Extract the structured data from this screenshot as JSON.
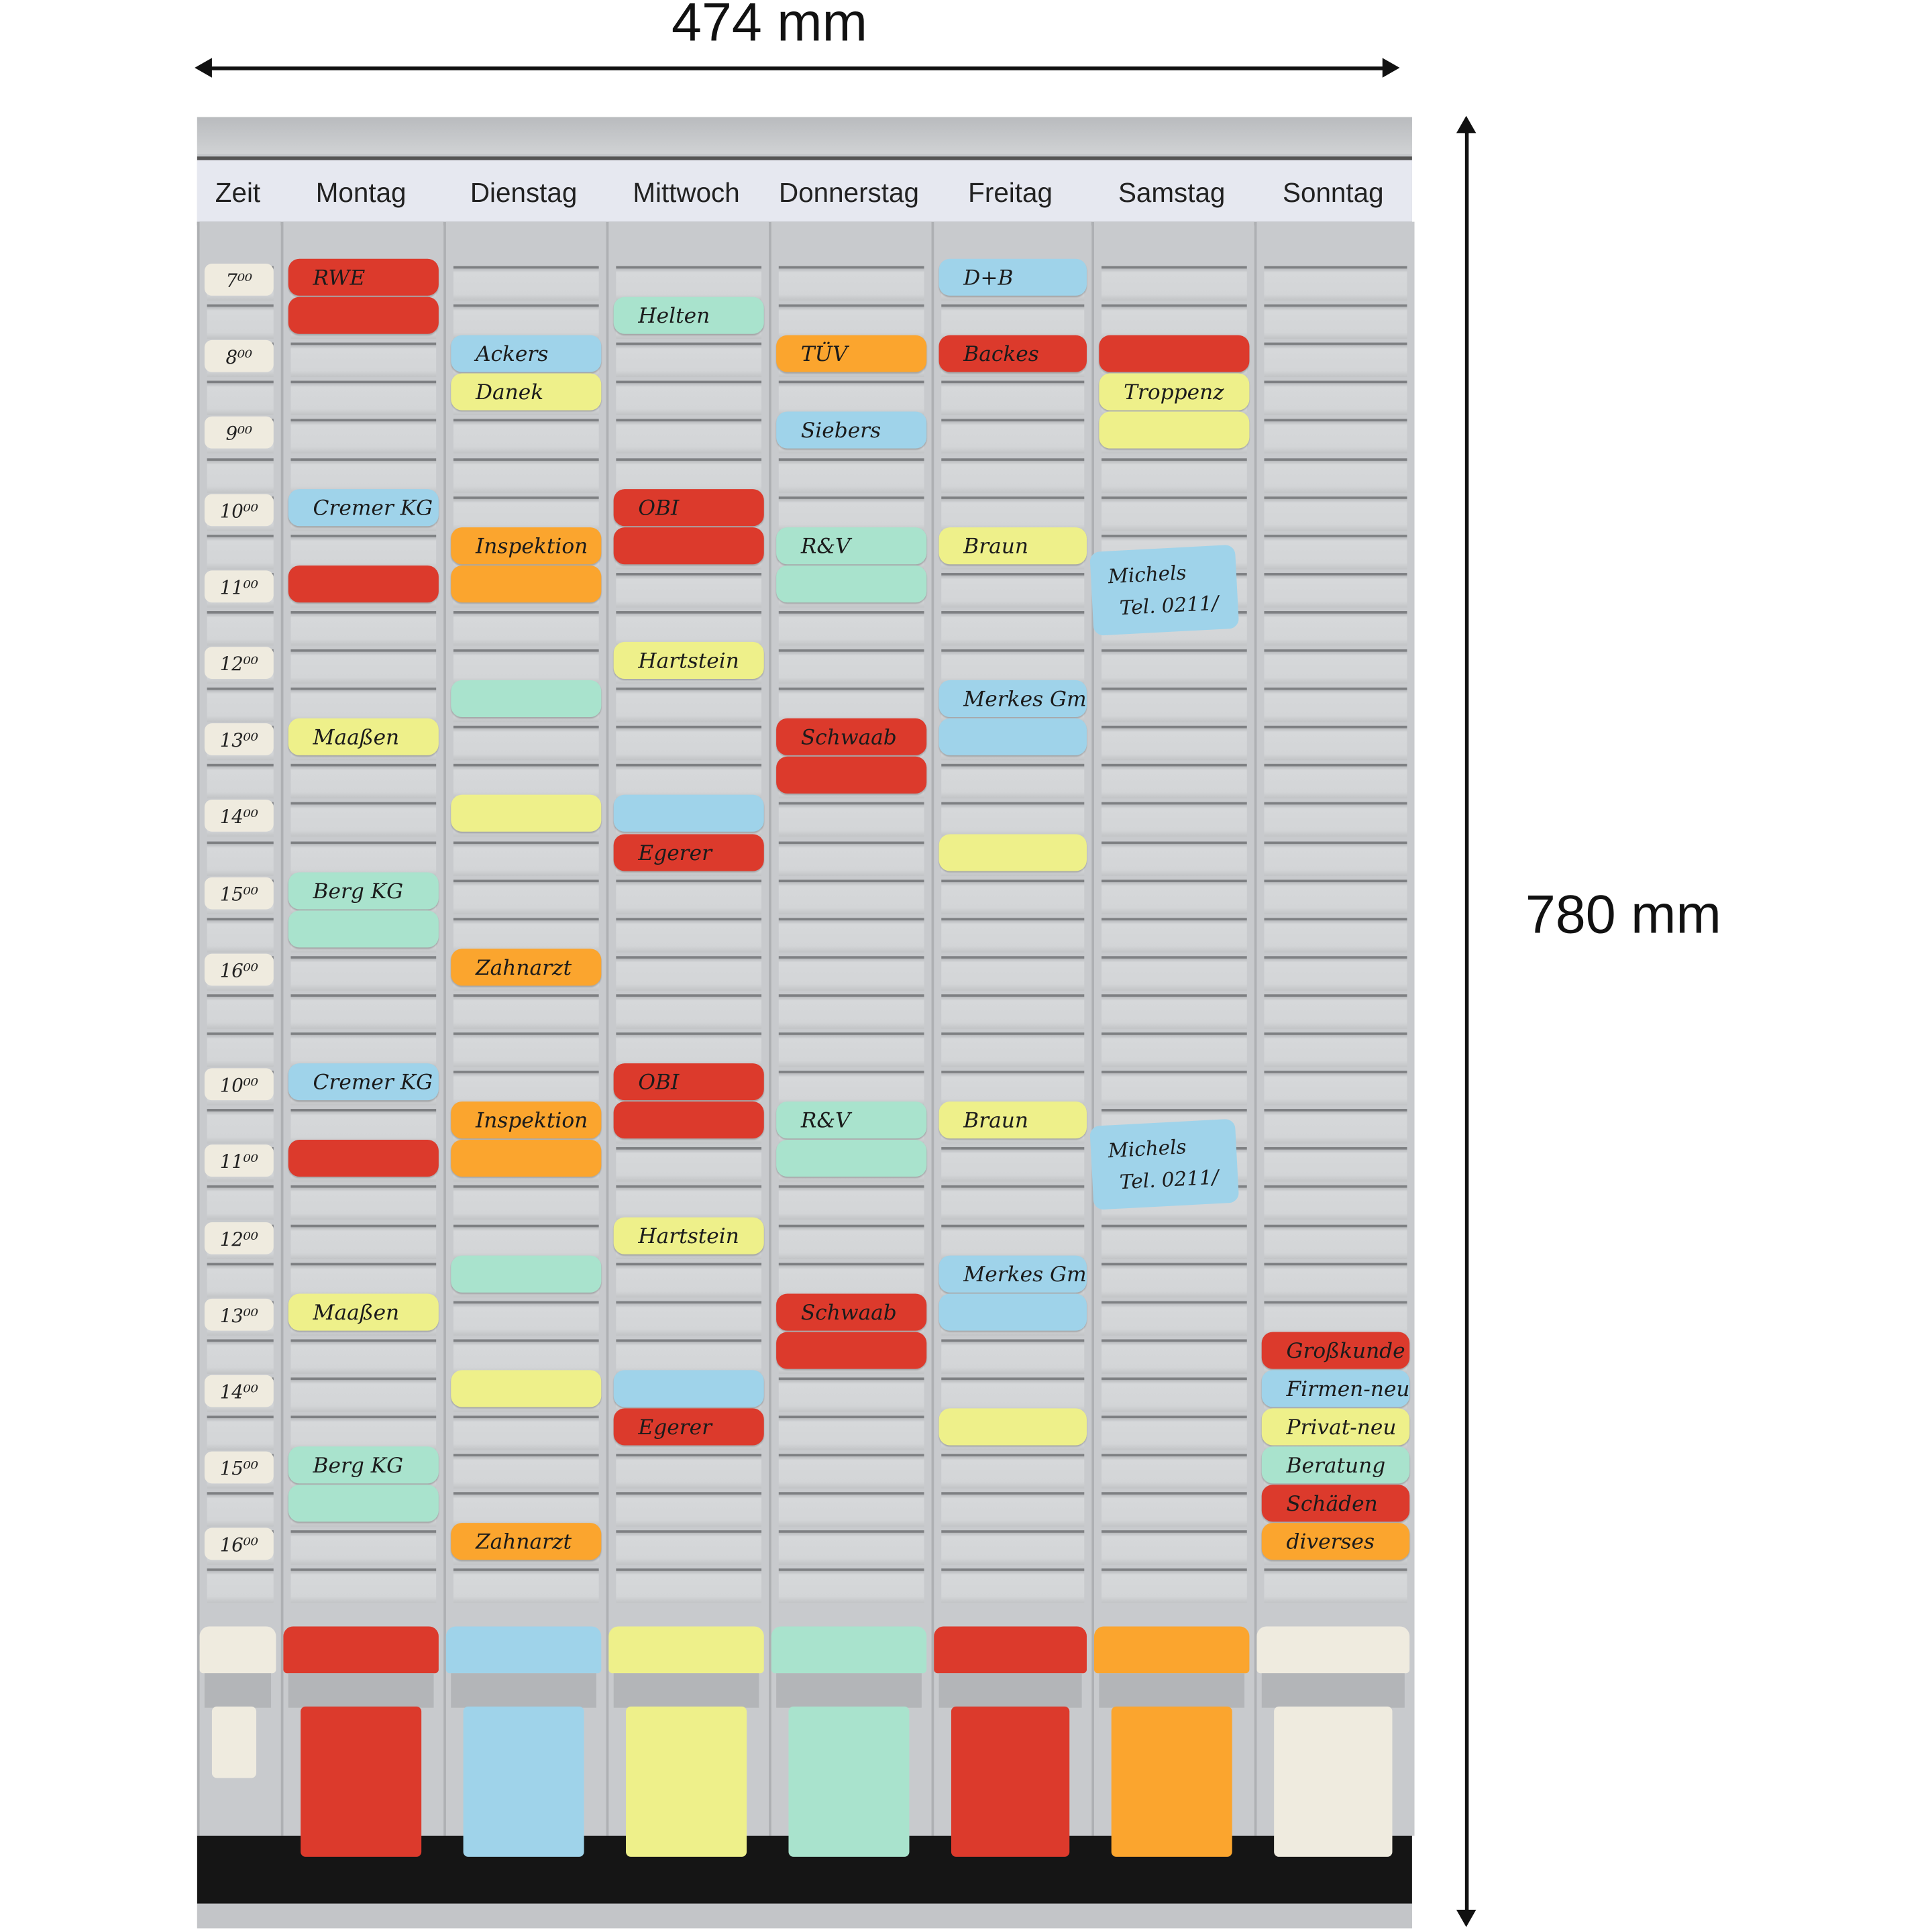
{
  "dimensions": {
    "width_label": "474 mm",
    "height_label": "780 mm"
  },
  "colors": {
    "red": "#dc3a2c",
    "blue": "#9fd3ea",
    "yellow": "#eef08a",
    "green": "#a9e3cd",
    "orange": "#fba52e",
    "cream": "#efebdf",
    "board": "#c8cacd"
  },
  "columns": [
    "Zeit",
    "Montag",
    "Dienstag",
    "Mittwoch",
    "Donnerstag",
    "Freitag",
    "Samstag",
    "Sonntag"
  ],
  "row_count": 35,
  "time_labels": [
    {
      "row": 0,
      "text": "7⁰⁰"
    },
    {
      "row": 2,
      "text": "8⁰⁰"
    },
    {
      "row": 4,
      "text": "9⁰⁰"
    },
    {
      "row": 6,
      "text": "10⁰⁰"
    },
    {
      "row": 8,
      "text": "11⁰⁰"
    },
    {
      "row": 10,
      "text": "12⁰⁰"
    },
    {
      "row": 12,
      "text": "13⁰⁰"
    },
    {
      "row": 14,
      "text": "14⁰⁰"
    },
    {
      "row": 16,
      "text": "15⁰⁰"
    },
    {
      "row": 18,
      "text": "16⁰⁰"
    },
    {
      "row": 21,
      "text": "10⁰⁰"
    },
    {
      "row": 23,
      "text": "11⁰⁰"
    },
    {
      "row": 25,
      "text": "12⁰⁰"
    },
    {
      "row": 27,
      "text": "13⁰⁰"
    },
    {
      "row": 29,
      "text": "14⁰⁰"
    },
    {
      "row": 31,
      "text": "15⁰⁰"
    },
    {
      "row": 33,
      "text": "16⁰⁰"
    }
  ],
  "cards": [
    [],
    [
      {
        "row": 0,
        "color": "red",
        "text": "RWE"
      },
      {
        "row": 1,
        "color": "red",
        "text": ""
      },
      {
        "row": 6,
        "color": "blue",
        "text": "Cremer KG"
      },
      {
        "row": 8,
        "color": "red",
        "text": ""
      },
      {
        "row": 12,
        "color": "yellow",
        "text": "Maaßen"
      },
      {
        "row": 16,
        "color": "green",
        "text": "Berg KG"
      },
      {
        "row": 17,
        "color": "green",
        "text": ""
      },
      {
        "row": 21,
        "color": "blue",
        "text": "Cremer KG"
      },
      {
        "row": 23,
        "color": "red",
        "text": ""
      },
      {
        "row": 27,
        "color": "yellow",
        "text": "Maaßen"
      },
      {
        "row": 31,
        "color": "green",
        "text": "Berg KG"
      },
      {
        "row": 32,
        "color": "green",
        "text": ""
      }
    ],
    [
      {
        "row": 2,
        "color": "blue",
        "text": "Ackers"
      },
      {
        "row": 3,
        "color": "yellow",
        "text": "Danek"
      },
      {
        "row": 7,
        "color": "orange",
        "text": "Inspektion"
      },
      {
        "row": 8,
        "color": "orange",
        "text": ""
      },
      {
        "row": 11,
        "color": "green",
        "text": ""
      },
      {
        "row": 14,
        "color": "yellow",
        "text": ""
      },
      {
        "row": 18,
        "color": "orange",
        "text": "Zahnarzt"
      },
      {
        "row": 22,
        "color": "orange",
        "text": "Inspektion"
      },
      {
        "row": 23,
        "color": "orange",
        "text": ""
      },
      {
        "row": 26,
        "color": "green",
        "text": ""
      },
      {
        "row": 29,
        "color": "yellow",
        "text": ""
      },
      {
        "row": 33,
        "color": "orange",
        "text": "Zahnarzt"
      }
    ],
    [
      {
        "row": 1,
        "color": "green",
        "text": "Helten"
      },
      {
        "row": 6,
        "color": "red",
        "text": "OBI"
      },
      {
        "row": 7,
        "color": "red",
        "text": ""
      },
      {
        "row": 10,
        "color": "yellow",
        "text": "Hartstein"
      },
      {
        "row": 14,
        "color": "blue",
        "text": ""
      },
      {
        "row": 15,
        "color": "red",
        "text": "Egerer"
      },
      {
        "row": 21,
        "color": "red",
        "text": "OBI"
      },
      {
        "row": 22,
        "color": "red",
        "text": ""
      },
      {
        "row": 25,
        "color": "yellow",
        "text": "Hartstein"
      },
      {
        "row": 29,
        "color": "blue",
        "text": ""
      },
      {
        "row": 30,
        "color": "red",
        "text": "Egerer"
      }
    ],
    [
      {
        "row": 2,
        "color": "orange",
        "text": "TÜV"
      },
      {
        "row": 4,
        "color": "blue",
        "text": "Siebers"
      },
      {
        "row": 7,
        "color": "green",
        "text": "R&V"
      },
      {
        "row": 8,
        "color": "green",
        "text": ""
      },
      {
        "row": 12,
        "color": "red",
        "text": "Schwaab"
      },
      {
        "row": 13,
        "color": "red",
        "text": ""
      },
      {
        "row": 22,
        "color": "green",
        "text": "R&V"
      },
      {
        "row": 23,
        "color": "green",
        "text": ""
      },
      {
        "row": 27,
        "color": "red",
        "text": "Schwaab"
      },
      {
        "row": 28,
        "color": "red",
        "text": ""
      }
    ],
    [
      {
        "row": 0,
        "color": "blue",
        "text": "D+B"
      },
      {
        "row": 2,
        "color": "red",
        "text": "Backes"
      },
      {
        "row": 7,
        "color": "yellow",
        "text": "Braun"
      },
      {
        "row": 11,
        "color": "blue",
        "text": "Merkes GmbH"
      },
      {
        "row": 12,
        "color": "blue",
        "text": ""
      },
      {
        "row": 15,
        "color": "yellow",
        "text": ""
      },
      {
        "row": 22,
        "color": "yellow",
        "text": "Braun"
      },
      {
        "row": 26,
        "color": "blue",
        "text": "Merkes GmbH"
      },
      {
        "row": 27,
        "color": "blue",
        "text": ""
      },
      {
        "row": 30,
        "color": "yellow",
        "text": ""
      }
    ],
    [
      {
        "row": 2,
        "color": "red",
        "text": ""
      },
      {
        "row": 3,
        "color": "yellow",
        "text": "Troppenz"
      },
      {
        "row": 4,
        "color": "yellow",
        "text": ""
      }
    ],
    [
      {
        "row": 28,
        "color": "red",
        "text": "Großkunde"
      },
      {
        "row": 29,
        "color": "blue",
        "text": "Firmen-neu"
      },
      {
        "row": 30,
        "color": "yellow",
        "text": "Privat-neu"
      },
      {
        "row": 31,
        "color": "green",
        "text": "Beratung"
      },
      {
        "row": 32,
        "color": "red",
        "text": "Schäden"
      },
      {
        "row": 33,
        "color": "orange",
        "text": "diverses"
      }
    ]
  ],
  "notes": [
    {
      "column": 6,
      "row": 8,
      "color": "blue",
      "lines": [
        "Michels",
        "Tel. 0211/"
      ]
    },
    {
      "column": 6,
      "row": 23,
      "color": "blue",
      "lines": [
        "Michels",
        "Tel. 0211/"
      ]
    }
  ],
  "bins": [
    "cream",
    "red",
    "blue",
    "yellow",
    "green",
    "red",
    "orange",
    "cream"
  ]
}
